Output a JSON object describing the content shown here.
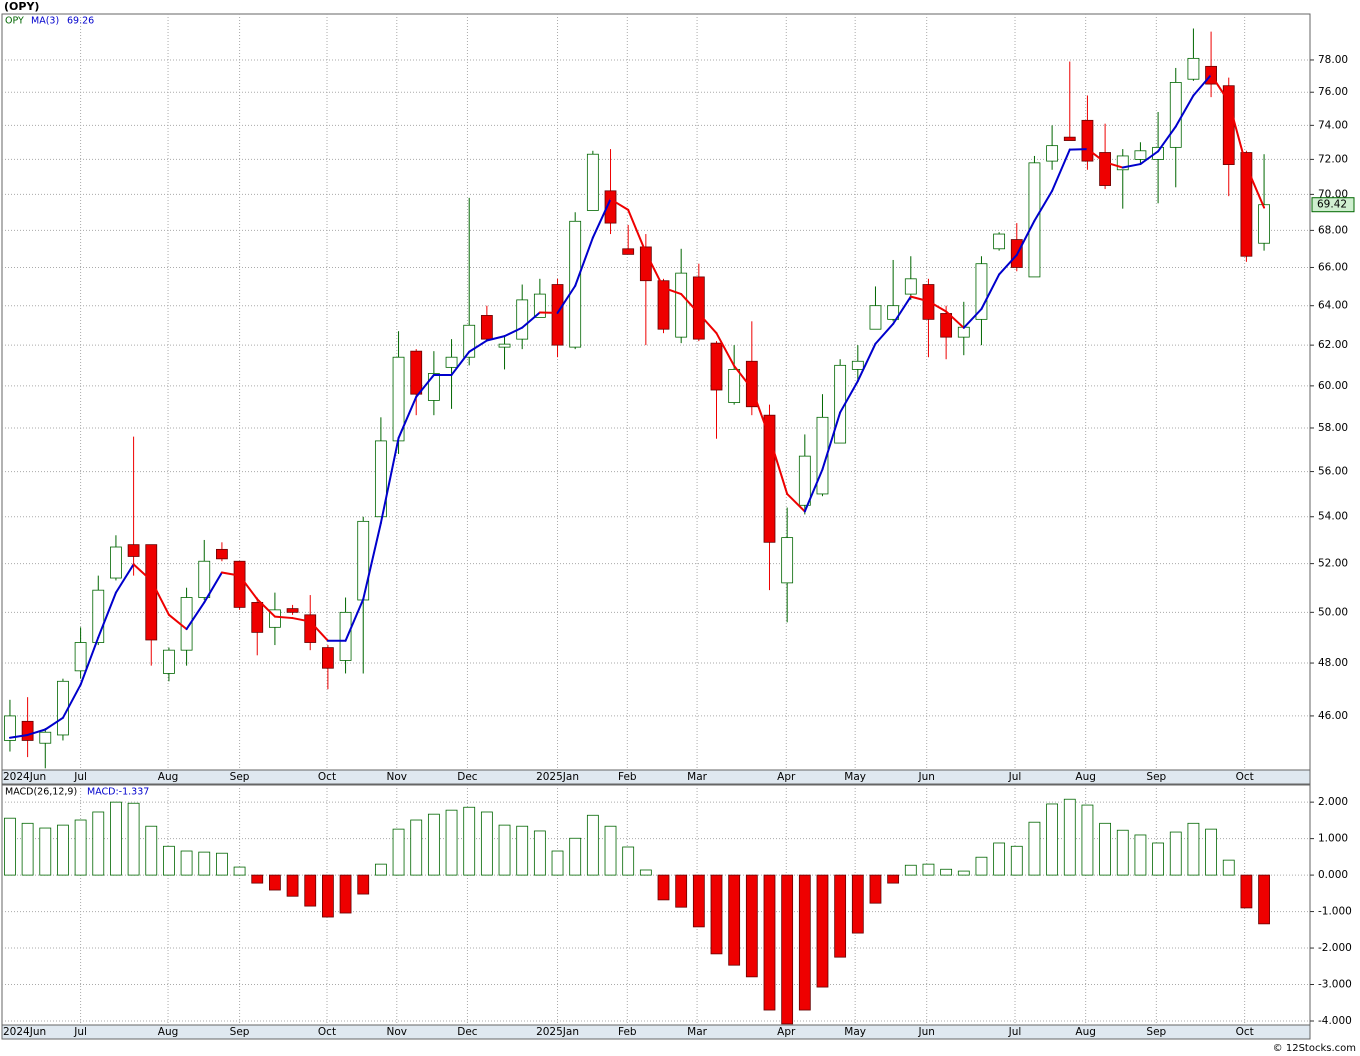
{
  "header": "(OPY)",
  "footer": "© 12Stocks.com",
  "chart_data": [
    {
      "type": "candlestick",
      "symbol": "OPY",
      "log_scale": true,
      "grid": true,
      "up_color": "#006600",
      "down_color": "#ee0000",
      "open": [
        45.1,
        45.8,
        45.0,
        45.3,
        47.7,
        48.8,
        51.4,
        52.8,
        52.8,
        47.6,
        48.5,
        50.6,
        52.6,
        52.1,
        50.4,
        49.4,
        50.15,
        49.9,
        48.6,
        48.1,
        50.5,
        54.0,
        57.4,
        61.7,
        59.3,
        60.9,
        61.4,
        63.5,
        61.9,
        62.3,
        63.4,
        65.1,
        61.9,
        69.1,
        70.2,
        67.0,
        67.1,
        65.3,
        62.4,
        65.5,
        62.1,
        59.2,
        61.2,
        58.6,
        51.2,
        54.5,
        55.0,
        57.3,
        60.8,
        62.8,
        63.3,
        64.6,
        65.1,
        63.6,
        62.4,
        63.3,
        67.0,
        67.5,
        65.5,
        71.9,
        73.3,
        74.3,
        72.4,
        71.4,
        72.0,
        72.0,
        72.7,
        76.8,
        77.6,
        76.4,
        72.4,
        67.3
      ],
      "high": [
        46.6,
        46.7,
        45.55,
        47.4,
        49.4,
        51.5,
        53.2,
        57.6,
        52.8,
        48.6,
        51.0,
        53.0,
        52.9,
        52.1,
        50.6,
        50.8,
        50.3,
        50.7,
        48.7,
        50.6,
        54.0,
        58.5,
        62.7,
        61.8,
        61.7,
        62.3,
        69.8,
        64.0,
        62.5,
        65.1,
        65.4,
        65.4,
        69.0,
        72.5,
        72.6,
        68.3,
        67.8,
        65.4,
        67.0,
        66.2,
        62.2,
        62.0,
        63.2,
        59.1,
        54.4,
        57.7,
        59.6,
        61.3,
        62.0,
        65.0,
        66.4,
        66.6,
        65.4,
        64.0,
        64.2,
        66.6,
        67.9,
        68.4,
        72.2,
        74.0,
        77.9,
        75.8,
        74.1,
        72.6,
        73.0,
        74.8,
        77.5,
        80.0,
        79.8,
        76.9,
        72.5,
        72.3
      ],
      "low": [
        44.7,
        44.5,
        44.1,
        45.1,
        47.4,
        48.7,
        51.3,
        51.5,
        47.9,
        47.3,
        47.9,
        50.5,
        52.1,
        50.1,
        48.3,
        48.7,
        49.9,
        48.5,
        47.0,
        47.6,
        47.6,
        54.0,
        56.8,
        58.6,
        58.6,
        58.9,
        61.0,
        62.2,
        60.8,
        61.8,
        63.4,
        61.4,
        61.8,
        69.1,
        67.8,
        66.7,
        62.0,
        62.6,
        62.1,
        62.2,
        57.5,
        59.1,
        58.6,
        50.9,
        49.6,
        54.1,
        54.9,
        57.3,
        60.3,
        62.8,
        63.2,
        64.3,
        61.4,
        61.3,
        61.5,
        62.0,
        66.9,
        65.8,
        65.5,
        71.4,
        73.1,
        71.4,
        70.3,
        69.2,
        71.7,
        69.5,
        70.4,
        76.7,
        75.7,
        69.9,
        66.3,
        66.9
      ],
      "close": [
        46.0,
        45.1,
        45.4,
        47.3,
        48.8,
        50.9,
        52.7,
        52.3,
        48.9,
        48.5,
        50.6,
        52.1,
        52.2,
        50.2,
        49.2,
        50.1,
        50.0,
        48.8,
        47.8,
        50.0,
        53.8,
        57.4,
        61.4,
        59.6,
        60.6,
        61.4,
        63.0,
        62.3,
        62.05,
        64.3,
        64.6,
        62.0,
        68.5,
        72.3,
        68.4,
        66.7,
        65.3,
        62.8,
        65.7,
        62.3,
        59.8,
        60.8,
        59.0,
        52.9,
        53.1,
        56.7,
        58.5,
        61.0,
        61.2,
        64.0,
        64.0,
        65.4,
        63.3,
        62.4,
        62.9,
        66.2,
        67.8,
        66.0,
        71.8,
        72.8,
        73.1,
        71.9,
        70.5,
        72.2,
        72.5,
        72.7,
        76.6,
        78.1,
        76.5,
        71.7,
        66.6,
        69.42
      ],
      "ma": {
        "name": "MA(3)",
        "rise_color": "#0000cc",
        "fall_color": "#ee0000",
        "values": [
          45.2,
          45.3,
          45.5,
          45.93,
          47.17,
          49.0,
          50.8,
          51.97,
          51.3,
          49.9,
          49.33,
          50.4,
          51.63,
          51.5,
          50.53,
          49.83,
          49.77,
          49.63,
          48.87,
          48.87,
          50.53,
          53.73,
          57.53,
          59.47,
          60.53,
          60.53,
          61.67,
          62.23,
          62.45,
          62.88,
          63.65,
          63.63,
          65.03,
          67.6,
          69.73,
          69.13,
          66.8,
          64.93,
          64.6,
          63.6,
          62.6,
          60.97,
          59.87,
          57.57,
          55.0,
          54.23,
          56.1,
          58.73,
          60.23,
          62.07,
          63.07,
          64.47,
          64.23,
          63.7,
          62.87,
          63.83,
          65.63,
          66.67,
          68.53,
          70.2,
          72.57,
          72.6,
          71.83,
          71.53,
          71.73,
          72.47,
          73.93,
          75.8,
          77.07,
          75.43,
          71.6,
          69.26
        ]
      },
      "xlim": [
        -0.45,
        73.6
      ],
      "xticks": [
        {
          "value": -0.45,
          "label": "2024Jun"
        },
        {
          "value": 4.0,
          "label": "Jul"
        },
        {
          "value": 8.95,
          "label": "Aug"
        },
        {
          "value": 13.0,
          "label": "Sep"
        },
        {
          "value": 17.95,
          "label": "Oct"
        },
        {
          "value": 21.9,
          "label": "Nov"
        },
        {
          "value": 25.9,
          "label": "Dec"
        },
        {
          "value": 31.0,
          "label": "2025Jan"
        },
        {
          "value": 34.95,
          "label": "Feb"
        },
        {
          "value": 38.9,
          "label": "Mar"
        },
        {
          "value": 43.95,
          "label": "Apr"
        },
        {
          "value": 47.85,
          "label": "May"
        },
        {
          "value": 51.9,
          "label": "Jun"
        },
        {
          "value": 56.9,
          "label": "Jul"
        },
        {
          "value": 60.9,
          "label": "Aug"
        },
        {
          "value": 64.9,
          "label": "Sep"
        },
        {
          "value": 69.9,
          "label": "Oct"
        }
      ],
      "ylim": [
        44.04,
        80.94
      ],
      "yticks": [
        {
          "value": 46,
          "label": "46.00"
        },
        {
          "value": 48,
          "label": "48.00"
        },
        {
          "value": 50,
          "label": "50.00"
        },
        {
          "value": 52,
          "label": "52.00"
        },
        {
          "value": 54,
          "label": "54.00"
        },
        {
          "value": 56,
          "label": "56.00"
        },
        {
          "value": 58,
          "label": "58.00"
        },
        {
          "value": 60,
          "label": "60.00"
        },
        {
          "value": 62,
          "label": "62.00"
        },
        {
          "value": 64,
          "label": "64.00"
        },
        {
          "value": 66,
          "label": "66.00"
        },
        {
          "value": 68,
          "label": "68.00"
        },
        {
          "value": 70,
          "label": "70.00"
        },
        {
          "value": 72,
          "label": "72.00"
        },
        {
          "value": 74,
          "label": "74.00"
        },
        {
          "value": 76,
          "label": "76.00"
        },
        {
          "value": 78,
          "label": "78.00"
        }
      ]
    },
    {
      "type": "histogram_bars",
      "name": "MACD(26,12,9)",
      "current_label": "MACD:-1.337",
      "grid": true,
      "pos_color": "#006600",
      "neg_color": "#ee0000",
      "values": [
        1.56,
        1.42,
        1.29,
        1.37,
        1.51,
        1.73,
        2.0,
        1.97,
        1.34,
        0.79,
        0.66,
        0.63,
        0.6,
        0.22,
        -0.22,
        -0.41,
        -0.58,
        -0.85,
        -1.15,
        -1.04,
        -0.52,
        0.3,
        1.26,
        1.51,
        1.67,
        1.78,
        1.86,
        1.73,
        1.37,
        1.34,
        1.21,
        0.66,
        1.01,
        1.64,
        1.34,
        0.77,
        0.14,
        -0.68,
        -0.88,
        -1.42,
        -2.16,
        -2.47,
        -2.79,
        -3.7,
        -4.08,
        -3.7,
        -3.07,
        -2.25,
        -1.59,
        -0.77,
        -0.22,
        0.27,
        0.3,
        0.16,
        0.11,
        0.49,
        0.88,
        0.79,
        1.45,
        1.95,
        2.08,
        1.92,
        1.42,
        1.23,
        1.1,
        0.88,
        1.18,
        1.42,
        1.26,
        0.41,
        -0.9,
        -1.337
      ],
      "ylim": [
        -4.11,
        2.47
      ],
      "yticks": [
        {
          "value": 2,
          "label": "2.000"
        },
        {
          "value": 1,
          "label": "1.000"
        },
        {
          "value": 0,
          "label": "0.000"
        },
        {
          "value": -1,
          "label": "-1.000"
        },
        {
          "value": -2,
          "label": "-2.000"
        },
        {
          "value": -3,
          "label": "-3.000"
        },
        {
          "value": -4,
          "label": "-4.000"
        }
      ]
    }
  ]
}
